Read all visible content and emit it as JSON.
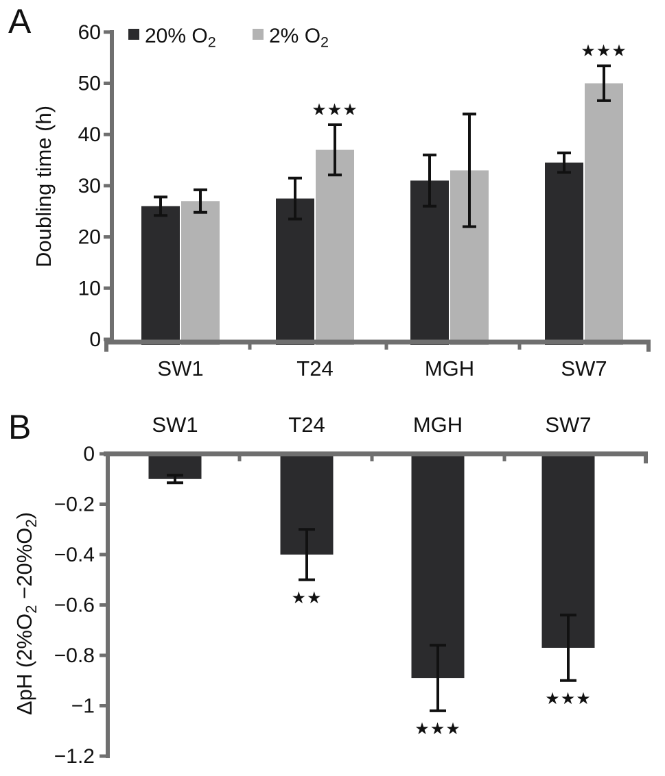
{
  "figure_title": "Hypoxia bar chart figure",
  "colors": {
    "dark_bar": "#2b2b2d",
    "light_bar": "#b3b3b3",
    "axis": "#6f6f6f",
    "text": "#111111",
    "error_bar": "#111111"
  },
  "chart_data": [
    {
      "type": "bar",
      "panel_label": "A",
      "title": "",
      "categories": [
        "SW1",
        "T24",
        "MGH",
        "SW7"
      ],
      "series": [
        {
          "name": "20% O2",
          "name_segments": [
            {
              "t": "20% O"
            },
            {
              "t": "2",
              "sub": true
            }
          ],
          "color": "#2b2b2d",
          "values": [
            26,
            27.5,
            31,
            34.5
          ],
          "errors": [
            1.8,
            4,
            5,
            1.9
          ],
          "significance": [
            "",
            "",
            "",
            ""
          ]
        },
        {
          "name": "2% O2",
          "name_segments": [
            {
              "t": "2% O"
            },
            {
              "t": "2",
              "sub": true
            }
          ],
          "color": "#b3b3b3",
          "values": [
            27,
            37,
            33,
            50
          ],
          "errors": [
            2.2,
            4.9,
            11,
            3.4
          ],
          "significance": [
            "",
            "★★★",
            "",
            "★★★"
          ]
        }
      ],
      "xlabel": "",
      "ylabel": "Doubling time (h)",
      "ylabel_segments": [
        {
          "t": "Doubling time (h)"
        }
      ],
      "ylim": [
        0,
        60
      ],
      "yticks": [
        {
          "v": 0,
          "label": "0"
        },
        {
          "v": 10,
          "label": "10"
        },
        {
          "v": 20,
          "label": "20"
        },
        {
          "v": 30,
          "label": "30"
        },
        {
          "v": 40,
          "label": "40"
        },
        {
          "v": 50,
          "label": "50"
        },
        {
          "v": 60,
          "label": "60"
        }
      ],
      "legend_position": "top-inside",
      "grid": false
    },
    {
      "type": "bar",
      "panel_label": "B",
      "title": "",
      "categories": [
        "SW1",
        "T24",
        "MGH",
        "SW7"
      ],
      "series": [
        {
          "name": "delta pH",
          "name_segments": [
            {
              "t": "ΔpH"
            }
          ],
          "color": "#2b2b2d",
          "values": [
            -0.1,
            -0.4,
            -0.89,
            -0.77
          ],
          "errors": [
            0.015,
            0.1,
            0.13,
            0.13
          ],
          "significance": [
            "",
            "★★",
            "★★★",
            "★★★"
          ]
        }
      ],
      "xlabel": "",
      "ylabel": "ΔpH (2%O2 −20%O2)",
      "ylabel_segments": [
        {
          "t": "ΔpH (2%O"
        },
        {
          "t": "2",
          "sub": true
        },
        {
          "t": " −20%O"
        },
        {
          "t": "2",
          "sub": true
        },
        {
          "t": ")"
        }
      ],
      "ylim": [
        -1.2,
        0
      ],
      "yticks": [
        {
          "v": 0,
          "label": "0"
        },
        {
          "v": -0.2,
          "label": "−0.2"
        },
        {
          "v": -0.4,
          "label": "−0.4"
        },
        {
          "v": -0.6,
          "label": "−0.6"
        },
        {
          "v": -0.8,
          "label": "−0.8"
        },
        {
          "v": -1,
          "label": "−1"
        },
        {
          "v": -1.2,
          "label": "−1.2"
        }
      ],
      "category_label_position": "above-axis",
      "grid": false
    }
  ]
}
